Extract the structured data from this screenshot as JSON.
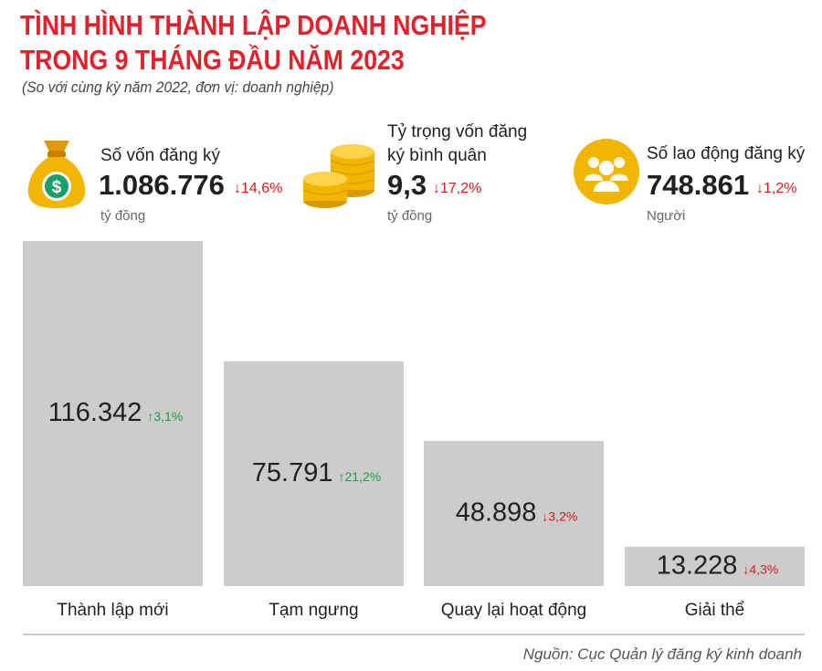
{
  "header": {
    "title_line1": "TÌNH HÌNH THÀNH LẬP DOANH NGHIỆP",
    "title_line2": "TRONG 9 THÁNG ĐẦU NĂM 2023",
    "subtitle": "(So với cùng kỳ năm 2022, đơn vị: doanh nghiệp)"
  },
  "stats": {
    "capital": {
      "label": "Số vốn đăng ký",
      "value": "1.086.776",
      "change": "↓14,6%",
      "unit": "tỷ đồng",
      "icon": "money-bag-icon"
    },
    "avg_capital": {
      "label_line1": "Tỷ trọng vốn đăng",
      "label_line2": "ký bình quân",
      "value": "9,3",
      "change": "↓17,2%",
      "unit": "tỷ đồng",
      "icon": "coins-icon"
    },
    "labor": {
      "label": "Số lao động đăng ký",
      "value": "748.861",
      "change": "↓1,2%",
      "unit": "Người",
      "icon": "people-icon"
    }
  },
  "colors": {
    "title": "#e4212b",
    "bar": "#cccccc",
    "up": "#1a9e3a",
    "down": "#d71920",
    "icon_gold": "#f2b500"
  },
  "chart_data": {
    "type": "bar",
    "categories": [
      "Thành lập mới",
      "Tạm ngưng",
      "Quay lại hoạt động",
      "Giải thể"
    ],
    "values": [
      116342,
      75791,
      48898,
      13228
    ],
    "value_labels": [
      "116.342",
      "75.791",
      "48.898",
      "13.228"
    ],
    "changes": [
      "↑3,1%",
      "↑21,2%",
      "↓3,2%",
      "↓4,3%"
    ],
    "directions": [
      "up",
      "up",
      "down",
      "down"
    ],
    "ylim": [
      0,
      120000
    ],
    "title": "",
    "xlabel": "",
    "ylabel": "",
    "grid": false
  },
  "source": "Nguồn: Cục Quản lý đăng ký kinh doanh"
}
